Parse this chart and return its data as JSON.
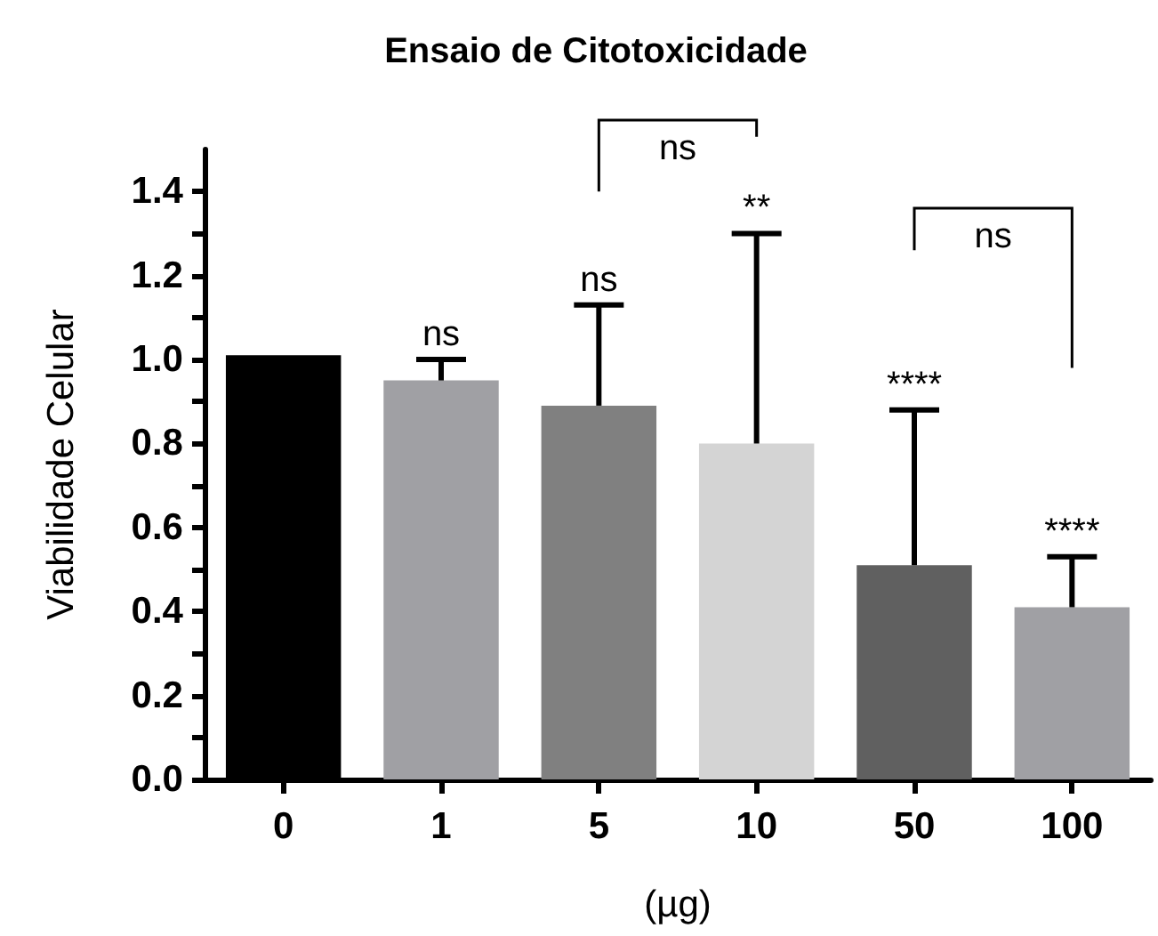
{
  "chart_data": {
    "type": "bar",
    "title": "Ensaio de Citotoxicidade",
    "xlabel": "(µg)",
    "ylabel": "Viabilidade Celular",
    "categories": [
      "0",
      "1",
      "5",
      "10",
      "50",
      "100"
    ],
    "values": [
      1.01,
      0.95,
      0.89,
      0.8,
      0.51,
      0.41
    ],
    "colors": [
      "#000000",
      "#a0a0a4",
      "#808080",
      "#d4d4d4",
      "#606060",
      "#a0a0a4"
    ],
    "errors": [
      null,
      [
        0.95,
        1.0
      ],
      [
        0.89,
        1.13
      ],
      [
        0.8,
        1.3
      ],
      [
        0.51,
        0.88
      ],
      [
        0.41,
        0.53
      ]
    ],
    "ylim": [
      0,
      1.5
    ],
    "yticks": [
      {
        "value": 0,
        "label": "0.0"
      },
      {
        "value": 0.1,
        "label": null
      },
      0.2,
      {
        "value": 0.3,
        "label": null
      },
      0.4,
      {
        "value": 0.5,
        "label": null
      },
      0.6,
      {
        "value": 0.7,
        "label": null
      },
      0.8,
      {
        "value": 0.9,
        "label": null
      },
      {
        "value": 1,
        "label": "1.0"
      },
      {
        "value": 1.1,
        "label": null
      },
      1.2,
      {
        "value": 1.3,
        "label": null
      },
      1.4
    ],
    "grid": false,
    "annotations": [
      {
        "text": "ns",
        "x": "1",
        "y": 1.0
      },
      {
        "text": "ns",
        "x": "5",
        "y": 1.13
      },
      {
        "text": "**",
        "x": "10",
        "y": 1.3
      },
      {
        "text": "****",
        "x": "50",
        "y": 0.88
      },
      {
        "text": "****",
        "x": "100",
        "y": 0.53
      },
      "ns",
      "ns"
    ]
  }
}
